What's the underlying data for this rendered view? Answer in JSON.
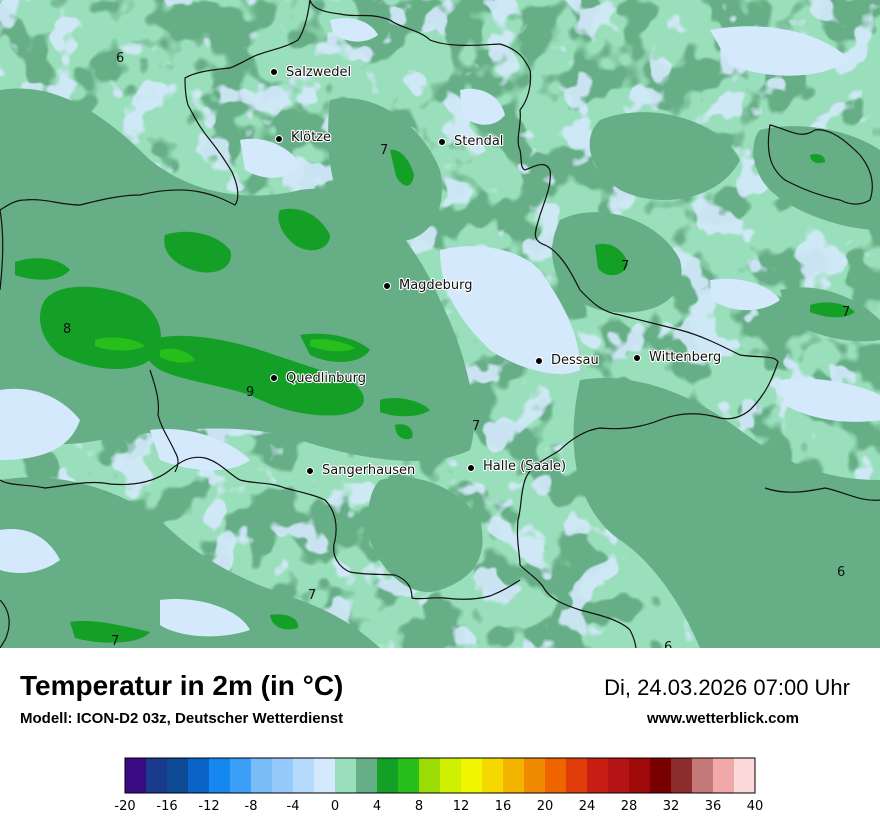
{
  "map": {
    "cities": [
      {
        "name": "Salzwedel",
        "id": "salzwedel"
      },
      {
        "name": "Klötze",
        "id": "kloetze"
      },
      {
        "name": "Stendal",
        "id": "stendal"
      },
      {
        "name": "Magdeburg",
        "id": "magdeburg"
      },
      {
        "name": "Dessau",
        "id": "dessau"
      },
      {
        "name": "Wittenberg",
        "id": "wittenberg"
      },
      {
        "name": "Quedlinburg",
        "id": "quedlinburg"
      },
      {
        "name": "Sangerhausen",
        "id": "sangerhausen"
      },
      {
        "name": "Halle (Saale)",
        "id": "halle"
      }
    ],
    "values": [
      "6",
      "7",
      "7",
      "8",
      "9",
      "7",
      "7",
      "7",
      "6",
      "7",
      "6"
    ],
    "colors": {
      "t4_6": "#9adfbb",
      "t6_8": "#66ae86",
      "t8_10": "#14a026",
      "t10_12": "#27bf1c",
      "t2_4": "#d5e9fc",
      "border": "#111111"
    }
  },
  "footer": {
    "title": "Temperatur in 2m (in °C)",
    "model": "Modell: ICON-D2 03z, Deutscher Wetterdienst",
    "datetime": "Di, 24.03.2026 07:00 Uhr",
    "website": "www.wetterblick.com"
  },
  "legend": {
    "ticks": [
      "-20",
      "-16",
      "-12",
      "-8",
      "-4",
      "0",
      "4",
      "8",
      "12",
      "16",
      "20",
      "24",
      "28",
      "32",
      "36",
      "40"
    ],
    "colors": [
      "#3a0a82",
      "#1a3a8c",
      "#0d4a96",
      "#0a64c8",
      "#1488f0",
      "#3ca0f8",
      "#78bcf8",
      "#96cafc",
      "#b4dafc",
      "#d5e9fc",
      "#9adfbb",
      "#66ae86",
      "#14a026",
      "#27bf1c",
      "#9cdc05",
      "#cff000",
      "#f2f500",
      "#f5d800",
      "#f5b400",
      "#f08a00",
      "#f06400",
      "#e03c0a",
      "#c81e14",
      "#b41414",
      "#a00a0a",
      "#780000",
      "#8c2c2c",
      "#c47878",
      "#f0a8a8",
      "#fdd8d8"
    ]
  }
}
